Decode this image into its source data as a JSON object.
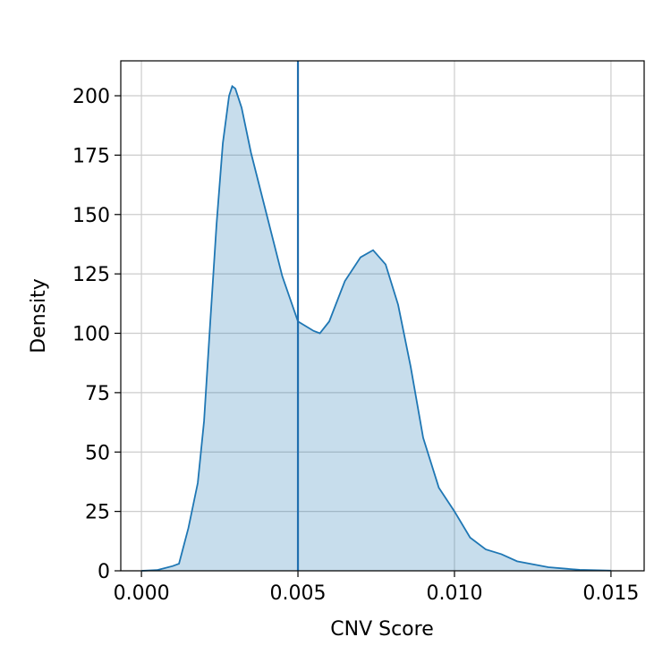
{
  "chart_data": {
    "type": "kde",
    "xlabel": "CNV Score",
    "ylabel": "Density",
    "x": [
      0.0,
      0.0005,
      0.001,
      0.0012,
      0.0015,
      0.0018,
      0.002,
      0.0022,
      0.0024,
      0.0026,
      0.0028,
      0.0029,
      0.003,
      0.0032,
      0.0035,
      0.004,
      0.0045,
      0.005,
      0.0055,
      0.0057,
      0.006,
      0.0065,
      0.007,
      0.0074,
      0.0078,
      0.0082,
      0.0086,
      0.009,
      0.0095,
      0.01,
      0.0105,
      0.011,
      0.0115,
      0.012,
      0.013,
      0.014,
      0.015
    ],
    "series": [
      {
        "color": "#1f77b4",
        "values": [
          0,
          0.3,
          2,
          3,
          18,
          37,
          63,
          105,
          146,
          180,
          200,
          204,
          203,
          195,
          176,
          150,
          124,
          105,
          101,
          100,
          105,
          122,
          132,
          135,
          129,
          112,
          86,
          56,
          35,
          25,
          14,
          9,
          7,
          4,
          1.5,
          0.4,
          0.1
        ]
      }
    ],
    "vline": {
      "x": 0.005,
      "color": "#1f6eae"
    },
    "xlim": [
      -0.00066,
      0.01606
    ],
    "ylim": [
      0,
      214.7
    ],
    "xticks": [
      {
        "value": 0,
        "label": "0.000"
      },
      {
        "value": 0.005,
        "label": "0.005"
      },
      {
        "value": 0.01,
        "label": "0.010"
      },
      {
        "value": 0.015,
        "label": "0.015"
      }
    ],
    "yticks": [
      0,
      25,
      50,
      75,
      100,
      125,
      150,
      175,
      200
    ],
    "grid": true
  }
}
